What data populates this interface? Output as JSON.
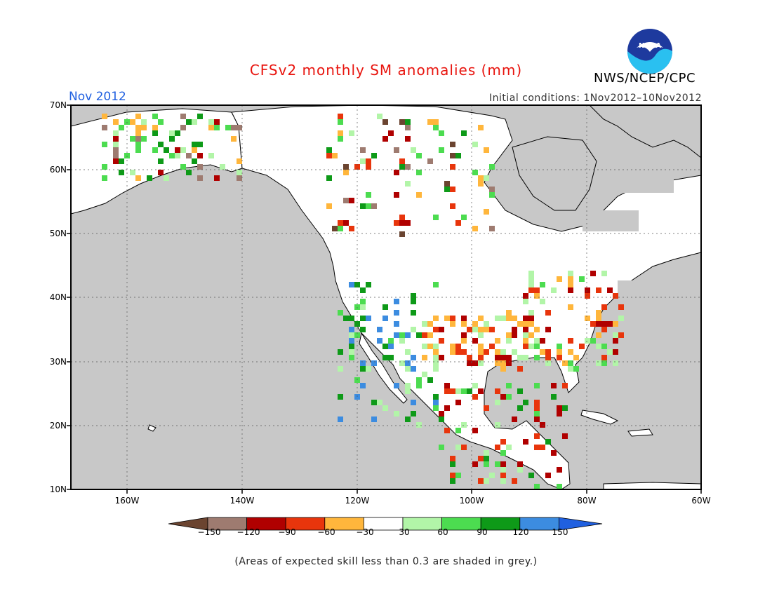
{
  "title": "CFSv2 monthly SM anomalies (mm)",
  "month": "Nov 2012",
  "initial_conditions": "Initial conditions: 1Nov2012–10Nov2012",
  "agency": "NWS/NCEP/CPC",
  "logo_text": "NOAA",
  "note": "(Areas of expected skill less than 0.3 are shaded in grey.)",
  "map_region": "North America",
  "lat_labels": [
    "70N",
    "60N",
    "50N",
    "40N",
    "30N",
    "20N",
    "10N"
  ],
  "lat_values": [
    70,
    60,
    50,
    40,
    30,
    20,
    10
  ],
  "lon_labels": [
    "160W",
    "140W",
    "120W",
    "100W",
    "80W",
    "60W"
  ],
  "lon_values": [
    -160,
    -140,
    -120,
    -100,
    -80,
    -60
  ],
  "colorbar": {
    "labels": [
      "−150",
      "−120",
      "−90",
      "−60",
      "−30",
      "30",
      "60",
      "90",
      "120",
      "150"
    ],
    "colors": [
      "#6b4430",
      "#9e7b70",
      "#b00000",
      "#e8350c",
      "#ffb63c",
      "#ffffff",
      "#b2f5a8",
      "#4cdc50",
      "#0e9a18",
      "#3c8ce0",
      "#2060e0"
    ]
  },
  "colors": {
    "ocean": "#c8c8c8",
    "land_grey": "#c8c8c8",
    "land_white": "#ffffff",
    "title_red": "#e8140e",
    "month_blue": "#2060e0"
  }
}
